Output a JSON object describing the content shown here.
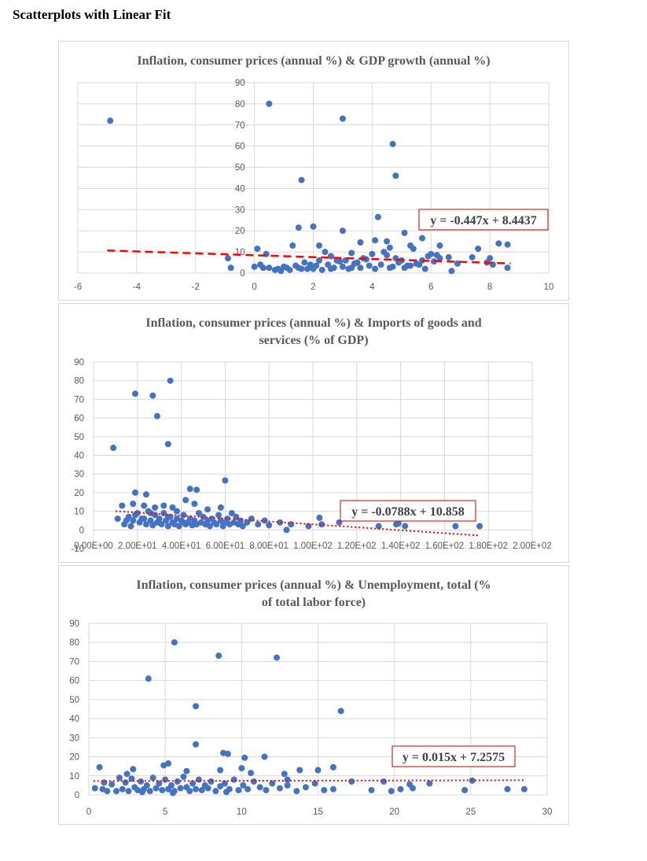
{
  "page": {
    "title": "Scatterplots with Linear Fit"
  },
  "colors": {
    "marker": "#4472c4",
    "trendline": "#ff0000",
    "grid": "#d9d9d9",
    "axis_text": "#595959",
    "equation_border": "#c00000"
  },
  "chart_data": [
    {
      "type": "scatter",
      "title_lines": [
        "Inflation, consumer prices (annual %) & GDP growth (annual %)"
      ],
      "xlim": [
        -6,
        10
      ],
      "ylim": [
        0,
        90
      ],
      "x_ticks": [
        -6,
        -4,
        -2,
        0,
        2,
        4,
        6,
        8,
        10
      ],
      "x_tick_labels": [
        "-6",
        "-4",
        "-2",
        "0",
        "2",
        "4",
        "6",
        "8",
        "10"
      ],
      "y_ticks": [
        0,
        10,
        20,
        30,
        40,
        50,
        60,
        70,
        80,
        90
      ],
      "y_tick_labels": [
        "0",
        "10",
        "20",
        "30",
        "40",
        "50",
        "60",
        "70",
        "80",
        "90"
      ],
      "grid": true,
      "legend": "none",
      "trendline": {
        "slope": -0.447,
        "intercept": 8.4437,
        "x_range": [
          -5,
          8.7
        ],
        "style": "dashed",
        "equation": "y = -0.447x + 8.4437"
      },
      "points": [
        [
          -4.9,
          72
        ],
        [
          0.5,
          80
        ],
        [
          3.0,
          73
        ],
        [
          4.7,
          61
        ],
        [
          4.8,
          46
        ],
        [
          1.6,
          44
        ],
        [
          4.2,
          26.5
        ],
        [
          3.0,
          20
        ],
        [
          1.5,
          21.5
        ],
        [
          2.0,
          22
        ],
        [
          5.7,
          16.5
        ],
        [
          5.1,
          19
        ],
        [
          7.6,
          11.5
        ],
        [
          8.3,
          14
        ],
        [
          8.6,
          13.5
        ],
        [
          1.3,
          13
        ],
        [
          2.2,
          13
        ],
        [
          3.6,
          14.5
        ],
        [
          4.5,
          15
        ],
        [
          4.1,
          15.5
        ],
        [
          4.6,
          12
        ],
        [
          5.3,
          13
        ],
        [
          5.4,
          11.5
        ],
        [
          6.3,
          13
        ],
        [
          0.1,
          11.5
        ],
        [
          -0.9,
          7
        ],
        [
          -0.8,
          2.5
        ],
        [
          0.0,
          3
        ],
        [
          0.2,
          4
        ],
        [
          0.5,
          2.5
        ],
        [
          0.8,
          2
        ],
        [
          1.0,
          3
        ],
        [
          1.2,
          1.5
        ],
        [
          1.5,
          2.5
        ],
        [
          1.7,
          5
        ],
        [
          1.8,
          2
        ],
        [
          2.1,
          3.5
        ],
        [
          2.3,
          1.5
        ],
        [
          2.5,
          4
        ],
        [
          2.7,
          2.5
        ],
        [
          2.8,
          6
        ],
        [
          3.0,
          3
        ],
        [
          3.2,
          2
        ],
        [
          3.4,
          4.5
        ],
        [
          3.6,
          2.5
        ],
        [
          3.8,
          6.5
        ],
        [
          3.9,
          3.5
        ],
        [
          4.1,
          2
        ],
        [
          4.3,
          4
        ],
        [
          4.5,
          8.5
        ],
        [
          4.7,
          3
        ],
        [
          4.9,
          5
        ],
        [
          5.1,
          2.5
        ],
        [
          5.3,
          3.5
        ],
        [
          5.5,
          4.5
        ],
        [
          5.7,
          6
        ],
        [
          5.9,
          8
        ],
        [
          6.1,
          5.5
        ],
        [
          6.3,
          7
        ],
        [
          6.6,
          7.5
        ],
        [
          6.7,
          1
        ],
        [
          6.9,
          4.5
        ],
        [
          7.4,
          7.5
        ],
        [
          7.9,
          5
        ],
        [
          8.0,
          7
        ],
        [
          8.1,
          4
        ],
        [
          8.6,
          2.5
        ],
        [
          0.4,
          9
        ],
        [
          0.9,
          1
        ],
        [
          1.4,
          3.5
        ],
        [
          2.4,
          10
        ],
        [
          2.6,
          8
        ],
        [
          3.3,
          9.5
        ],
        [
          3.7,
          7
        ],
        [
          4.0,
          9
        ],
        [
          4.4,
          10
        ],
        [
          4.8,
          7
        ],
        [
          5.0,
          6
        ],
        [
          5.2,
          3.5
        ],
        [
          5.6,
          4
        ],
        [
          6.0,
          9
        ],
        [
          6.2,
          8.5
        ],
        [
          2.2,
          6
        ],
        [
          2.9,
          5.5
        ],
        [
          3.5,
          5
        ],
        [
          1.9,
          4
        ],
        [
          1.1,
          2.5
        ],
        [
          0.7,
          1.5
        ],
        [
          2.0,
          2
        ],
        [
          3.1,
          6
        ],
        [
          4.6,
          2.5
        ],
        [
          5.8,
          2
        ],
        [
          3.3,
          2.5
        ],
        [
          2.6,
          2
        ],
        [
          1.6,
          2
        ],
        [
          0.3,
          2.5
        ]
      ]
    },
    {
      "type": "scatter",
      "title_lines": [
        "Inflation, consumer prices (annual %) & Imports of goods and",
        "services (% of GDP)"
      ],
      "xlim": [
        0,
        200
      ],
      "ylim": [
        -10,
        90
      ],
      "x_ticks": [
        0,
        20,
        40,
        60,
        80,
        100,
        120,
        140,
        160,
        180,
        200
      ],
      "x_tick_labels": [
        "0.00E+00",
        "2.00E+01",
        "4.00E+01",
        "6.00E+01",
        "8.00E+01",
        "1.00E+02",
        "1.20E+02",
        "1.40E+02",
        "1.60E+02",
        "1.80E+02",
        "2.00E+02"
      ],
      "y_ticks": [
        -10,
        0,
        10,
        20,
        30,
        40,
        50,
        60,
        70,
        80,
        90
      ],
      "y_tick_labels": [
        "-10",
        "0",
        "10",
        "20",
        "30",
        "40",
        "50",
        "60",
        "70",
        "80",
        "90"
      ],
      "grid": true,
      "legend": "none",
      "trendline": {
        "slope": -0.0788,
        "intercept": 10.858,
        "x_range": [
          10,
          176
        ],
        "style": "dotted",
        "equation": "y = -0.0788x + 10.858"
      },
      "points": [
        [
          9,
          44
        ],
        [
          19,
          73
        ],
        [
          27,
          72
        ],
        [
          29,
          61
        ],
        [
          34,
          46
        ],
        [
          35,
          80
        ],
        [
          60,
          26.5
        ],
        [
          44,
          22
        ],
        [
          47,
          21.5
        ],
        [
          19,
          20
        ],
        [
          24,
          19
        ],
        [
          13,
          13
        ],
        [
          18,
          14
        ],
        [
          23,
          13
        ],
        [
          28,
          12
        ],
        [
          32,
          13
        ],
        [
          36,
          12
        ],
        [
          42,
          16
        ],
        [
          46,
          14
        ],
        [
          52,
          11
        ],
        [
          58,
          12
        ],
        [
          11,
          6
        ],
        [
          14,
          3
        ],
        [
          16,
          7
        ],
        [
          18,
          5
        ],
        [
          20,
          9
        ],
        [
          21,
          4
        ],
        [
          22,
          6
        ],
        [
          24,
          3
        ],
        [
          25,
          10
        ],
        [
          26,
          5
        ],
        [
          27,
          2.5
        ],
        [
          28,
          8
        ],
        [
          29,
          4
        ],
        [
          30,
          6
        ],
        [
          31,
          3
        ],
        [
          32,
          9
        ],
        [
          33,
          5
        ],
        [
          34,
          2
        ],
        [
          35,
          7
        ],
        [
          36,
          4
        ],
        [
          37,
          3
        ],
        [
          38,
          6
        ],
        [
          39,
          2
        ],
        [
          40,
          5
        ],
        [
          41,
          8
        ],
        [
          42,
          3
        ],
        [
          43,
          4
        ],
        [
          44,
          6
        ],
        [
          45,
          2.5
        ],
        [
          46,
          5
        ],
        [
          47,
          3
        ],
        [
          48,
          9
        ],
        [
          49,
          4
        ],
        [
          50,
          7
        ],
        [
          51,
          3
        ],
        [
          52,
          5
        ],
        [
          53,
          2
        ],
        [
          54,
          6
        ],
        [
          55,
          4
        ],
        [
          56,
          3
        ],
        [
          57,
          8
        ],
        [
          58,
          5
        ],
        [
          59,
          2
        ],
        [
          60,
          4
        ],
        [
          61,
          6
        ],
        [
          62,
          3
        ],
        [
          63,
          9
        ],
        [
          64,
          4
        ],
        [
          65,
          7
        ],
        [
          66,
          3
        ],
        [
          67,
          5
        ],
        [
          68,
          2
        ],
        [
          70,
          4
        ],
        [
          72,
          6
        ],
        [
          75,
          3
        ],
        [
          78,
          5
        ],
        [
          80,
          2.5
        ],
        [
          85,
          4
        ],
        [
          88,
          0
        ],
        [
          90,
          3
        ],
        [
          98,
          2
        ],
        [
          103,
          6.5
        ],
        [
          104,
          3
        ],
        [
          112,
          4
        ],
        [
          130,
          2
        ],
        [
          138,
          3
        ],
        [
          139,
          3.5
        ],
        [
          142,
          2
        ],
        [
          165,
          2
        ],
        [
          176,
          2
        ],
        [
          15,
          5
        ],
        [
          17,
          2
        ],
        [
          19,
          8
        ],
        [
          23,
          6
        ],
        [
          26,
          9
        ],
        [
          30,
          4
        ],
        [
          34,
          7
        ],
        [
          38,
          10
        ],
        [
          41,
          4
        ]
      ]
    },
    {
      "type": "scatter",
      "title_lines": [
        "Inflation, consumer prices (annual %) & Unemployment, total (%",
        "of total labor force)"
      ],
      "xlim": [
        0,
        30
      ],
      "ylim": [
        0,
        90
      ],
      "x_ticks": [
        0,
        5,
        10,
        15,
        20,
        25,
        30
      ],
      "x_tick_labels": [
        "0",
        "5",
        "10",
        "15",
        "20",
        "25",
        "30"
      ],
      "y_ticks": [
        0,
        10,
        20,
        30,
        40,
        50,
        60,
        70,
        80,
        90
      ],
      "y_tick_labels": [
        "0",
        "10",
        "20",
        "30",
        "40",
        "50",
        "60",
        "70",
        "80",
        "90"
      ],
      "grid": true,
      "legend": "none",
      "trendline": {
        "slope": 0.015,
        "intercept": 7.2575,
        "x_range": [
          0.3,
          28.5
        ],
        "style": "dotted",
        "equation": "y = 0.015x + 7.2575"
      },
      "points": [
        [
          5.6,
          80
        ],
        [
          8.5,
          73
        ],
        [
          12.3,
          72
        ],
        [
          3.9,
          61
        ],
        [
          7.0,
          46.5
        ],
        [
          16.5,
          44
        ],
        [
          7.0,
          26.5
        ],
        [
          8.8,
          22
        ],
        [
          9.1,
          21.5
        ],
        [
          10.2,
          19.5
        ],
        [
          11.5,
          20
        ],
        [
          0.7,
          14.5
        ],
        [
          2.5,
          11
        ],
        [
          2.9,
          13.5
        ],
        [
          4.9,
          15.5
        ],
        [
          5.2,
          16.5
        ],
        [
          6.4,
          12.5
        ],
        [
          8.6,
          13
        ],
        [
          10.0,
          14
        ],
        [
          10.6,
          11.5
        ],
        [
          12.8,
          11
        ],
        [
          13.8,
          13
        ],
        [
          15.0,
          13
        ],
        [
          16.0,
          14.5
        ],
        [
          0.4,
          3.5
        ],
        [
          0.9,
          3
        ],
        [
          1.2,
          2
        ],
        [
          1.5,
          5.5
        ],
        [
          1.8,
          2
        ],
        [
          2.0,
          9
        ],
        [
          2.2,
          3
        ],
        [
          2.4,
          6.5
        ],
        [
          2.6,
          2
        ],
        [
          2.8,
          8.5
        ],
        [
          3.0,
          4
        ],
        [
          3.2,
          2.5
        ],
        [
          3.4,
          7
        ],
        [
          3.6,
          3
        ],
        [
          3.8,
          5
        ],
        [
          4.0,
          2
        ],
        [
          4.2,
          9
        ],
        [
          4.4,
          3.5
        ],
        [
          4.6,
          6
        ],
        [
          4.8,
          2.5
        ],
        [
          5.0,
          8
        ],
        [
          5.2,
          3
        ],
        [
          5.4,
          5
        ],
        [
          5.6,
          2
        ],
        [
          5.8,
          7
        ],
        [
          6.0,
          3.5
        ],
        [
          6.2,
          9.5
        ],
        [
          6.4,
          4
        ],
        [
          6.6,
          2
        ],
        [
          6.8,
          6
        ],
        [
          7.0,
          3
        ],
        [
          7.2,
          8
        ],
        [
          7.4,
          2.5
        ],
        [
          7.6,
          5
        ],
        [
          7.8,
          3.5
        ],
        [
          8.0,
          7
        ],
        [
          8.3,
          2
        ],
        [
          8.6,
          4.5
        ],
        [
          8.9,
          6
        ],
        [
          9.2,
          3
        ],
        [
          9.5,
          8
        ],
        [
          9.8,
          2.5
        ],
        [
          10.1,
          5
        ],
        [
          10.4,
          3
        ],
        [
          10.8,
          7
        ],
        [
          11.2,
          4
        ],
        [
          11.6,
          2.5
        ],
        [
          12.0,
          6
        ],
        [
          12.5,
          3.5
        ],
        [
          13.0,
          5
        ],
        [
          13.6,
          2
        ],
        [
          14.2,
          4
        ],
        [
          14.8,
          6
        ],
        [
          15.4,
          2.5
        ],
        [
          16.0,
          3
        ],
        [
          17.2,
          7
        ],
        [
          18.5,
          2.5
        ],
        [
          19.3,
          7
        ],
        [
          19.8,
          2
        ],
        [
          20.4,
          3
        ],
        [
          21.0,
          5.5
        ],
        [
          21.2,
          3.5
        ],
        [
          22.3,
          6
        ],
        [
          24.6,
          2.5
        ],
        [
          25.1,
          7.5
        ],
        [
          27.4,
          3
        ],
        [
          28.5,
          3
        ],
        [
          1.0,
          6.5
        ],
        [
          3.5,
          1.5
        ],
        [
          5.5,
          1
        ],
        [
          9.0,
          1.5
        ],
        [
          13.0,
          8
        ]
      ]
    }
  ]
}
